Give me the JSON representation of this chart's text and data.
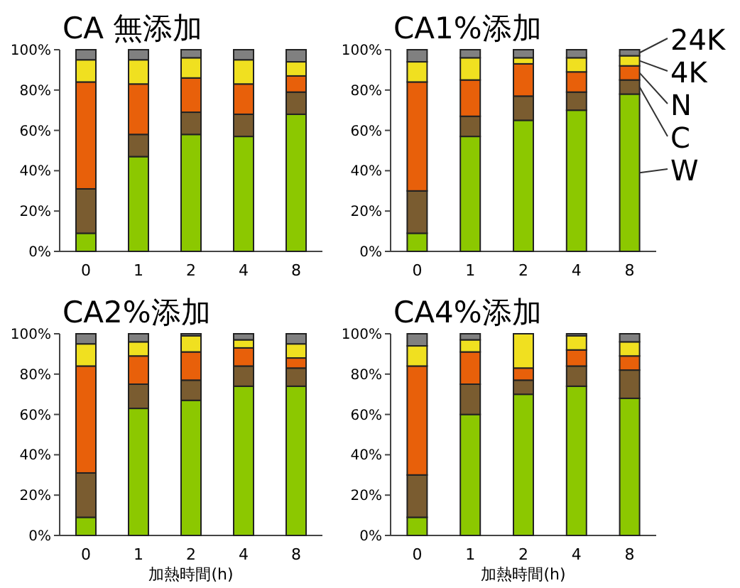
{
  "chart_data": [
    {
      "type": "bar",
      "title": "CA 無添加",
      "categories": [
        "0",
        "1",
        "2",
        "4",
        "8"
      ],
      "stacked": true,
      "ylim": [
        0,
        100
      ],
      "yticks": [
        {
          "value": 0,
          "label": "0%"
        },
        {
          "value": 20,
          "label": "20%"
        },
        {
          "value": 40,
          "label": "40%"
        },
        {
          "value": 60,
          "label": "60%"
        },
        {
          "value": 80,
          "label": "80%"
        },
        {
          "value": 100,
          "label": "100%"
        }
      ],
      "series": [
        {
          "color": "#8cc800",
          "values": [
            9,
            47,
            58,
            57,
            68
          ]
        },
        {
          "color": "#7a5c30",
          "values": [
            22,
            11,
            11,
            11,
            11
          ]
        },
        {
          "color": "#e8600a",
          "values": [
            53,
            25,
            17,
            15,
            8
          ]
        },
        {
          "color": "#f0e020",
          "values": [
            11,
            12,
            10,
            12,
            7
          ]
        },
        {
          "color": "#808080",
          "values": [
            5,
            5,
            4,
            5,
            6
          ]
        }
      ]
    },
    {
      "type": "bar",
      "title": "CA1%添加",
      "categories": [
        "0",
        "1",
        "2",
        "4",
        "8"
      ],
      "stacked": true,
      "ylim": [
        0,
        100
      ],
      "yticks": [
        {
          "value": 0,
          "label": "0%"
        },
        {
          "value": 20,
          "label": "20%"
        },
        {
          "value": 40,
          "label": "40%"
        },
        {
          "value": 60,
          "label": "60%"
        },
        {
          "value": 80,
          "label": "80%"
        },
        {
          "value": 100,
          "label": "100%"
        }
      ],
      "series": [
        {
          "name": "W",
          "color": "#8cc800",
          "values": [
            9,
            57,
            65,
            70,
            78
          ]
        },
        {
          "name": "C",
          "color": "#7a5c30",
          "values": [
            21,
            10,
            12,
            9,
            7
          ]
        },
        {
          "name": "N",
          "color": "#e8600a",
          "values": [
            54,
            18,
            16,
            10,
            7
          ]
        },
        {
          "name": "4K",
          "color": "#f0e020",
          "values": [
            10,
            11,
            3,
            7,
            5
          ]
        },
        {
          "name": "24K",
          "color": "#808080",
          "values": [
            6,
            4,
            4,
            4,
            3
          ]
        }
      ]
    },
    {
      "type": "bar",
      "title": "CA2%添加",
      "xlabel": "加熱時間(h)",
      "categories": [
        "0",
        "1",
        "2",
        "4",
        "8"
      ],
      "stacked": true,
      "ylim": [
        0,
        100
      ],
      "yticks": [
        {
          "value": 0,
          "label": "0%"
        },
        {
          "value": 20,
          "label": "20%"
        },
        {
          "value": 40,
          "label": "40%"
        },
        {
          "value": 60,
          "label": "60%"
        },
        {
          "value": 80,
          "label": "80%"
        },
        {
          "value": 100,
          "label": "100%"
        }
      ],
      "series": [
        {
          "color": "#8cc800",
          "values": [
            9,
            63,
            67,
            74,
            74
          ]
        },
        {
          "color": "#7a5c30",
          "values": [
            22,
            12,
            10,
            10,
            9
          ]
        },
        {
          "color": "#e8600a",
          "values": [
            53,
            14,
            14,
            9,
            5
          ]
        },
        {
          "color": "#f0e020",
          "values": [
            11,
            7,
            8,
            4,
            7
          ]
        },
        {
          "color": "#808080",
          "values": [
            5,
            4,
            1,
            3,
            5
          ]
        }
      ]
    },
    {
      "type": "bar",
      "title": "CA4%添加",
      "xlabel": "加熱時間(h)",
      "categories": [
        "0",
        "1",
        "2",
        "4",
        "8"
      ],
      "stacked": true,
      "ylim": [
        0,
        100
      ],
      "yticks": [
        {
          "value": 0,
          "label": "0%"
        },
        {
          "value": 20,
          "label": "20%"
        },
        {
          "value": 40,
          "label": "40%"
        },
        {
          "value": 60,
          "label": "60%"
        },
        {
          "value": 80,
          "label": "80%"
        },
        {
          "value": 100,
          "label": "100%"
        }
      ],
      "series": [
        {
          "color": "#8cc800",
          "values": [
            9,
            60,
            70,
            74,
            68
          ]
        },
        {
          "color": "#7a5c30",
          "values": [
            21,
            15,
            7,
            10,
            14
          ]
        },
        {
          "color": "#e8600a",
          "values": [
            54,
            16,
            6,
            8,
            7
          ]
        },
        {
          "color": "#f0e020",
          "values": [
            10,
            6,
            17,
            7,
            7
          ]
        },
        {
          "color": "#808080",
          "values": [
            6,
            3,
            0,
            1,
            4
          ]
        }
      ]
    }
  ]
}
